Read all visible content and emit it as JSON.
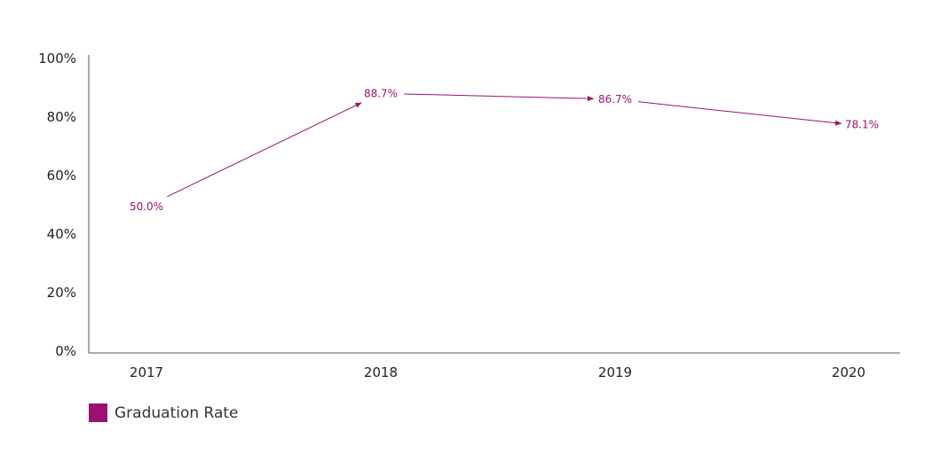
{
  "chart_data": {
    "type": "line",
    "categories": [
      "2017",
      "2018",
      "2019",
      "2020"
    ],
    "series": [
      {
        "name": "Graduation Rate",
        "values": [
          50.0,
          88.7,
          86.7,
          78.1
        ],
        "labels": [
          "50.0%",
          "88.7%",
          "86.7%",
          "78.1%"
        ]
      }
    ],
    "yticks": [
      "0%",
      "20%",
      "40%",
      "60%",
      "80%",
      "100%"
    ],
    "ylim": [
      0,
      100
    ],
    "title": "",
    "xlabel": "",
    "ylabel": "",
    "legend": "bottom-left",
    "grid": false,
    "colors": {
      "series": "#9b1170",
      "axis": "#555555",
      "text": "#222222"
    }
  }
}
